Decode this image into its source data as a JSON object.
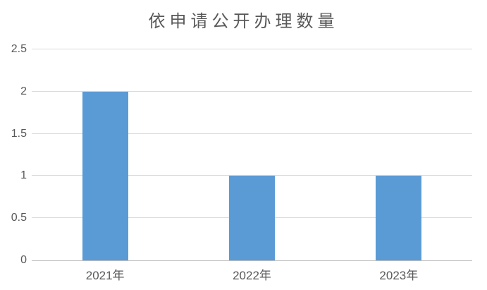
{
  "chart_data": {
    "type": "bar",
    "title": "依申请公开办理数量",
    "categories": [
      "2021年",
      "2022年",
      "2023年"
    ],
    "values": [
      2,
      1,
      1
    ],
    "xlabel": "",
    "ylabel": "",
    "ylim": [
      0,
      2.5
    ],
    "yticks": [
      0,
      0.5,
      1,
      1.5,
      2,
      2.5
    ],
    "ytick_labels": [
      "0",
      "0.5",
      "1",
      "1.5",
      "2",
      "2.5"
    ],
    "grid": true,
    "legend_position": "none",
    "colors": {
      "bar": "#5B9BD5",
      "gridline": "#D9D9D9",
      "axis_line": "#BFBFBF",
      "text": "#595959",
      "background": "#FFFFFF"
    }
  }
}
